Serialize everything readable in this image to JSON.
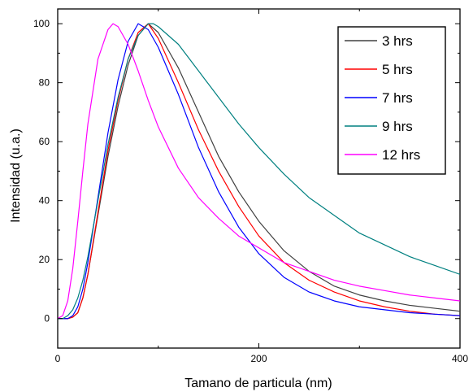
{
  "chart_data": {
    "type": "line",
    "xlabel": "Tamano de particula (nm)",
    "ylabel": "Intensidad (u.a.)",
    "xlim": [
      0,
      400
    ],
    "ylim": [
      -10,
      105
    ],
    "x_ticks": [
      0,
      200,
      400
    ],
    "y_ticks": [
      0,
      20,
      40,
      60,
      80,
      100
    ],
    "grid": false,
    "legend_position": "top-right",
    "series": [
      {
        "name": "3 hrs",
        "color": "#404040",
        "x": [
          0,
          10,
          15,
          20,
          25,
          30,
          40,
          50,
          60,
          70,
          80,
          90,
          100,
          120,
          140,
          160,
          180,
          200,
          225,
          250,
          275,
          300,
          325,
          350,
          375,
          400
        ],
        "y": [
          0,
          0,
          0.5,
          2,
          7,
          15,
          35,
          55,
          72,
          86,
          96,
          100,
          97,
          85,
          70,
          55,
          43,
          33,
          23,
          16,
          11,
          8,
          6,
          4.5,
          3.5,
          2.5
        ]
      },
      {
        "name": "5 hrs",
        "color": "#ff0000",
        "x": [
          0,
          10,
          15,
          20,
          25,
          30,
          40,
          50,
          60,
          70,
          80,
          90,
          100,
          120,
          140,
          160,
          180,
          200,
          225,
          250,
          275,
          300,
          325,
          350,
          375,
          400
        ],
        "y": [
          0,
          0,
          0.5,
          2,
          7,
          15,
          36,
          57,
          74,
          88,
          97,
          100,
          95,
          80,
          64,
          50,
          38,
          28,
          19,
          13,
          9,
          6,
          4,
          2.5,
          1.5,
          1
        ]
      },
      {
        "name": "7 hrs",
        "color": "#0000ff",
        "x": [
          0,
          10,
          15,
          20,
          25,
          30,
          40,
          50,
          60,
          70,
          80,
          90,
          100,
          120,
          140,
          160,
          180,
          200,
          225,
          250,
          275,
          300,
          325,
          350,
          375,
          400
        ],
        "y": [
          0,
          0,
          1,
          4,
          10,
          19,
          41,
          63,
          81,
          94,
          100,
          98,
          92,
          76,
          58,
          43,
          31,
          22,
          14,
          9,
          6,
          4,
          3,
          2,
          1.5,
          1
        ]
      },
      {
        "name": "9 hrs",
        "color": "#008080",
        "x": [
          0,
          5,
          10,
          15,
          20,
          25,
          30,
          40,
          50,
          60,
          70,
          80,
          90,
          95,
          100,
          120,
          140,
          160,
          180,
          200,
          225,
          250,
          275,
          300,
          325,
          350,
          375,
          400
        ],
        "y": [
          0,
          0,
          1,
          3,
          7,
          13,
          21,
          40,
          59,
          75,
          88,
          96,
          100,
          100,
          99,
          93,
          84,
          75,
          66,
          58,
          49,
          41,
          35,
          29,
          25,
          21,
          18,
          15
        ]
      },
      {
        "name": "12 hrs",
        "color": "#ff00ff",
        "x": [
          0,
          5,
          10,
          15,
          20,
          25,
          30,
          40,
          50,
          55,
          60,
          70,
          80,
          90,
          100,
          120,
          140,
          160,
          180,
          200,
          225,
          250,
          275,
          300,
          325,
          350,
          375,
          400
        ],
        "y": [
          0,
          1,
          6,
          17,
          33,
          50,
          66,
          88,
          98,
          100,
          99,
          93,
          84,
          74,
          65,
          51,
          41,
          34,
          28,
          24,
          19,
          16,
          13,
          11,
          9.5,
          8,
          7,
          6
        ]
      }
    ]
  }
}
